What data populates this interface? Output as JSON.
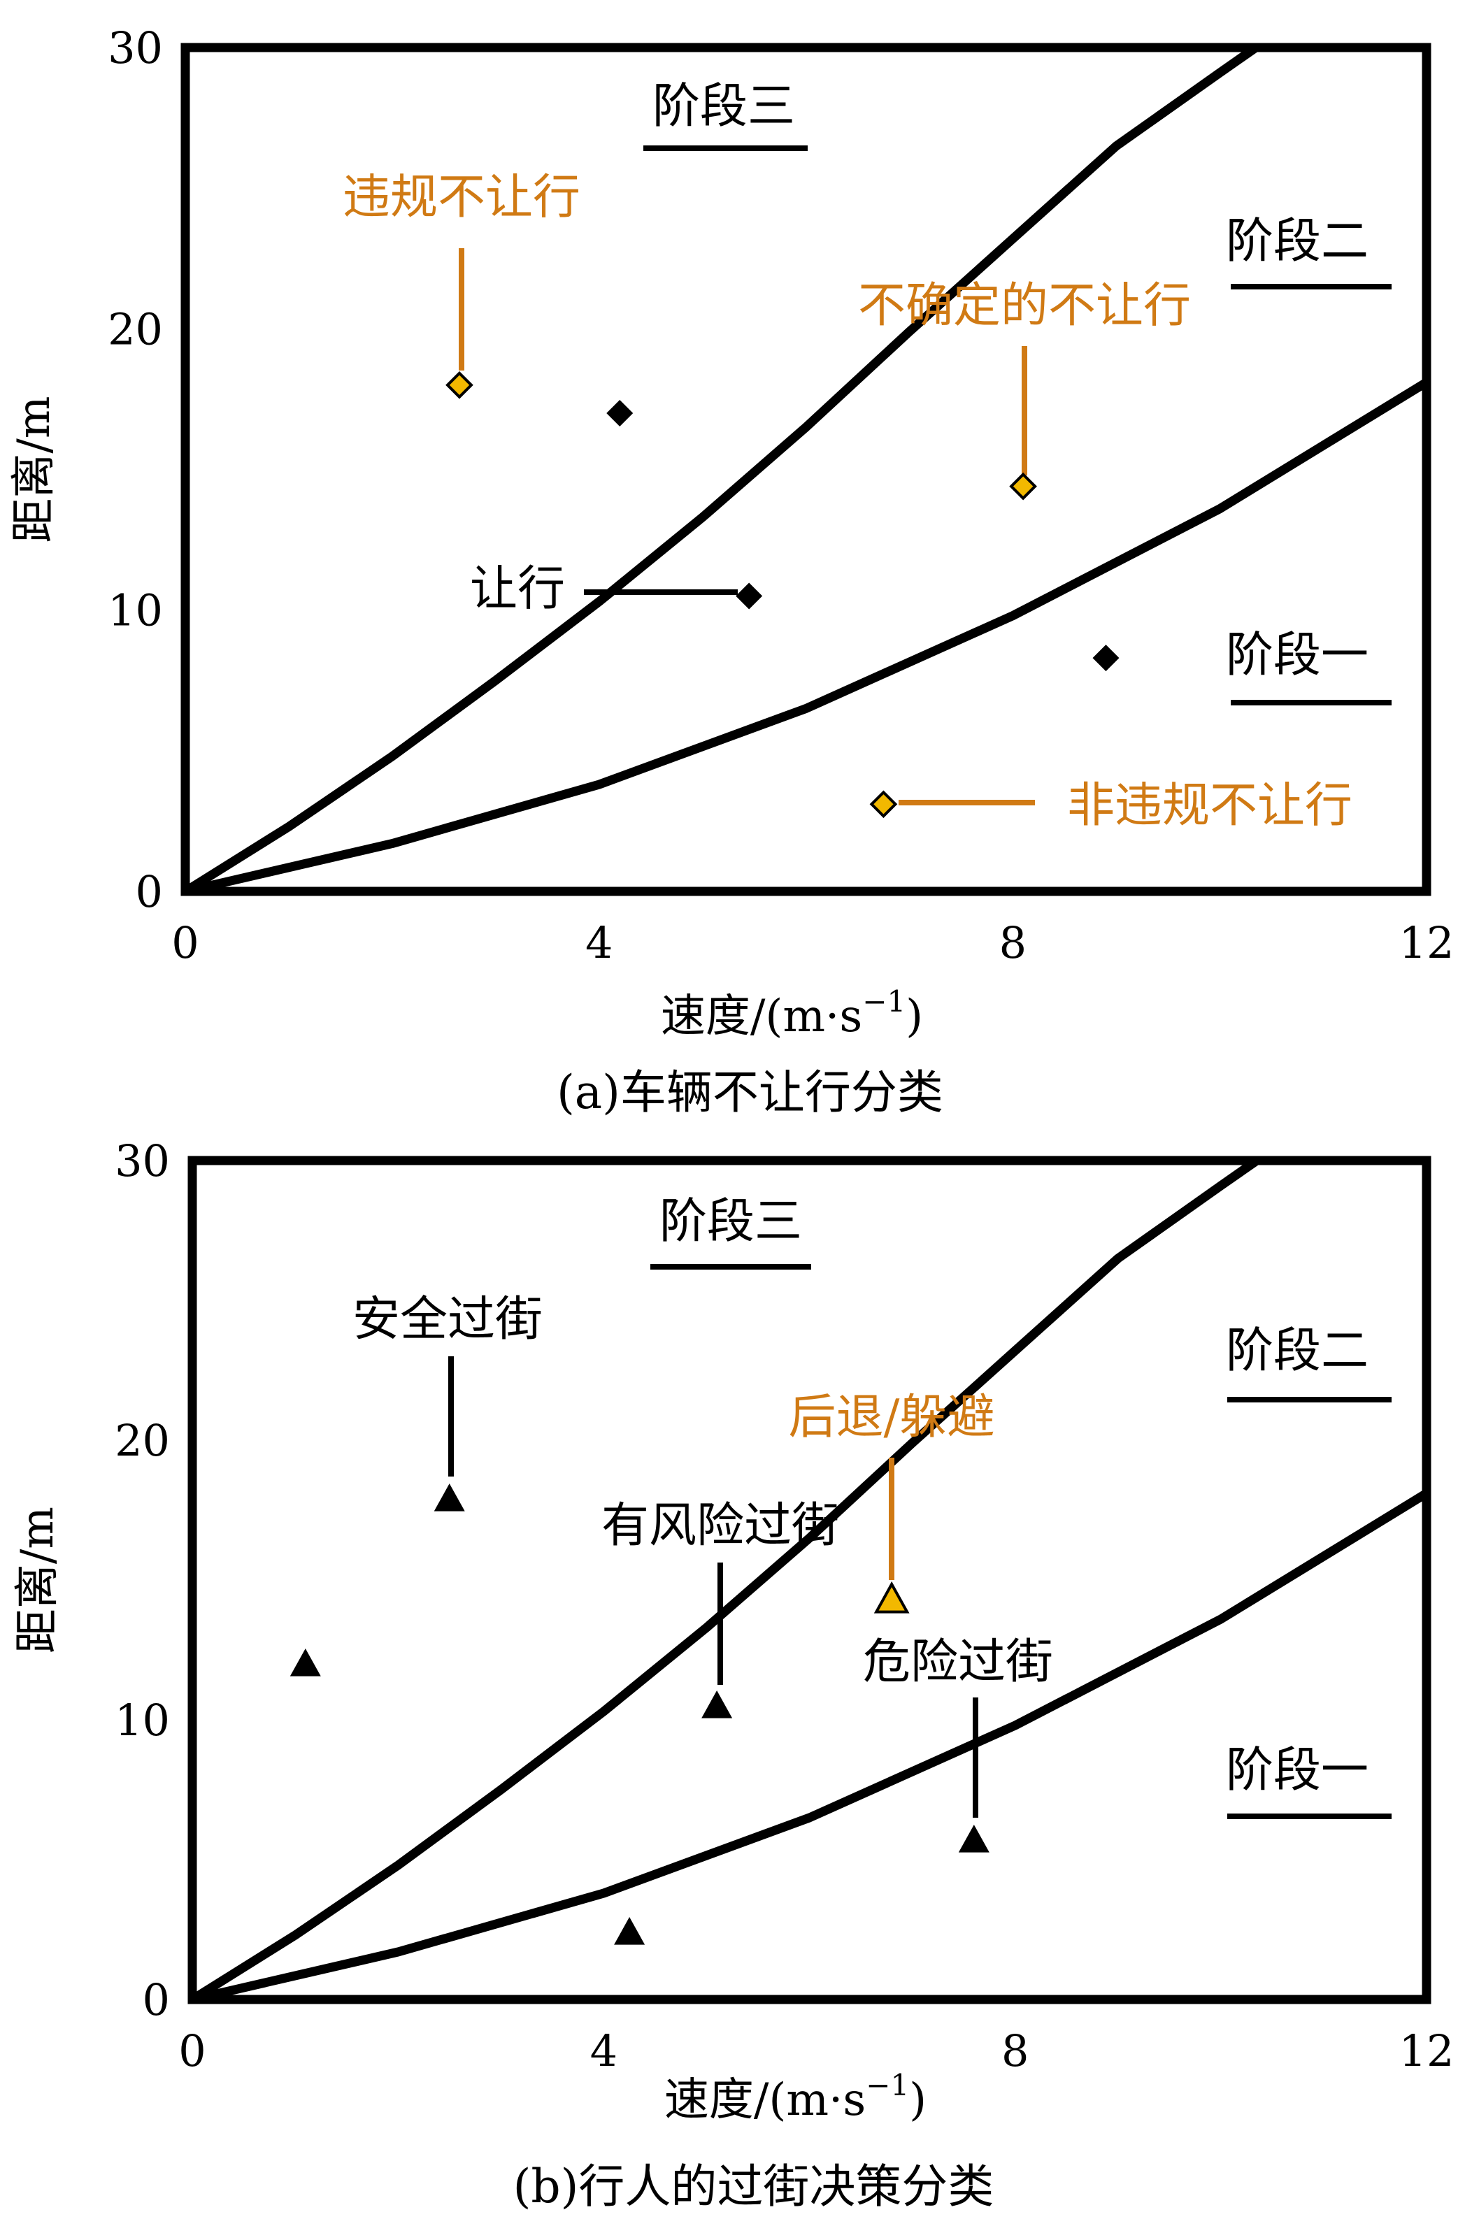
{
  "colors": {
    "black": "#000000",
    "orange": "#D07A14",
    "marker_orange": "#F2B800"
  },
  "chart_data": [
    {
      "type": "scatter",
      "caption": "(a)车辆不让行分类",
      "xlabel": "速度/(m·s",
      "xlabel_sup": "−1",
      "xlabel_close": ")",
      "ylabel": "距离/m",
      "xlim": [
        0,
        12
      ],
      "ylim": [
        0,
        30
      ],
      "xticks": [
        "0",
        "4",
        "8",
        "12"
      ],
      "yticks": [
        "0",
        "10",
        "20",
        "30"
      ],
      "grid": false,
      "curves": [
        {
          "x": [
            0,
            1,
            2,
            3,
            4,
            5,
            6,
            7,
            8,
            9,
            10,
            10.35
          ],
          "y": [
            0,
            2.3,
            4.8,
            7.5,
            10.3,
            13.3,
            16.5,
            19.9,
            23.2,
            26.5,
            29.1,
            30
          ]
        },
        {
          "x": [
            0,
            2,
            4,
            6,
            8,
            10,
            12
          ],
          "y": [
            0,
            1.7,
            3.8,
            6.5,
            9.8,
            13.6,
            18.1
          ]
        }
      ],
      "points": [
        {
          "x": 2.65,
          "y": 18.0,
          "marker": "diamond",
          "color": "orange"
        },
        {
          "x": 4.2,
          "y": 17.0,
          "marker": "diamond",
          "color": "black"
        },
        {
          "x": 8.1,
          "y": 14.4,
          "marker": "diamond",
          "color": "orange"
        },
        {
          "x": 5.45,
          "y": 10.5,
          "marker": "diamond",
          "color": "black"
        },
        {
          "x": 8.9,
          "y": 8.3,
          "marker": "diamond",
          "color": "black"
        },
        {
          "x": 6.75,
          "y": 3.1,
          "marker": "diamond",
          "color": "orange"
        }
      ],
      "stage_labels": [
        {
          "text": "阶段三"
        },
        {
          "text": "阶段二"
        },
        {
          "text": "阶段一"
        }
      ],
      "annotations": [
        {
          "text": "违规不让行",
          "color": "orange"
        },
        {
          "text": "不确定的不让行",
          "color": "orange"
        },
        {
          "text": "让行",
          "color": "black"
        },
        {
          "text": "非违规不让行",
          "color": "orange"
        }
      ]
    },
    {
      "type": "scatter",
      "caption": "(b)行人的过街决策分类",
      "xlabel": "速度/(m·s",
      "xlabel_sup": "−1",
      "xlabel_close": ")",
      "ylabel": "距离/m",
      "xlim": [
        0,
        12
      ],
      "ylim": [
        0,
        30
      ],
      "xticks": [
        "0",
        "4",
        "8",
        "12"
      ],
      "yticks": [
        "0",
        "10",
        "20",
        "30"
      ],
      "grid": false,
      "curves": [
        {
          "x": [
            0,
            1,
            2,
            3,
            4,
            5,
            6,
            7,
            8,
            9,
            10,
            10.35
          ],
          "y": [
            0,
            2.3,
            4.8,
            7.5,
            10.3,
            13.3,
            16.5,
            19.9,
            23.2,
            26.5,
            29.1,
            30
          ]
        },
        {
          "x": [
            0,
            2,
            4,
            6,
            8,
            10,
            12
          ],
          "y": [
            0,
            1.7,
            3.8,
            6.5,
            9.8,
            13.6,
            18.1
          ]
        }
      ],
      "points": [
        {
          "x": 1.1,
          "y": 12.0,
          "marker": "triangle",
          "color": "black"
        },
        {
          "x": 2.5,
          "y": 17.9,
          "marker": "triangle",
          "color": "black"
        },
        {
          "x": 5.1,
          "y": 10.5,
          "marker": "triangle",
          "color": "black"
        },
        {
          "x": 6.8,
          "y": 14.3,
          "marker": "triangle",
          "color": "orange"
        },
        {
          "x": 7.6,
          "y": 5.7,
          "marker": "triangle",
          "color": "black"
        },
        {
          "x": 4.25,
          "y": 2.4,
          "marker": "triangle",
          "color": "black"
        }
      ],
      "stage_labels": [
        {
          "text": "阶段三"
        },
        {
          "text": "阶段二"
        },
        {
          "text": "阶段一"
        }
      ],
      "annotations": [
        {
          "text": "安全过街",
          "color": "black"
        },
        {
          "text": "有风险过街",
          "color": "black"
        },
        {
          "text": "后退/躲避",
          "color": "orange"
        },
        {
          "text": "危险过街",
          "color": "black"
        }
      ]
    }
  ]
}
